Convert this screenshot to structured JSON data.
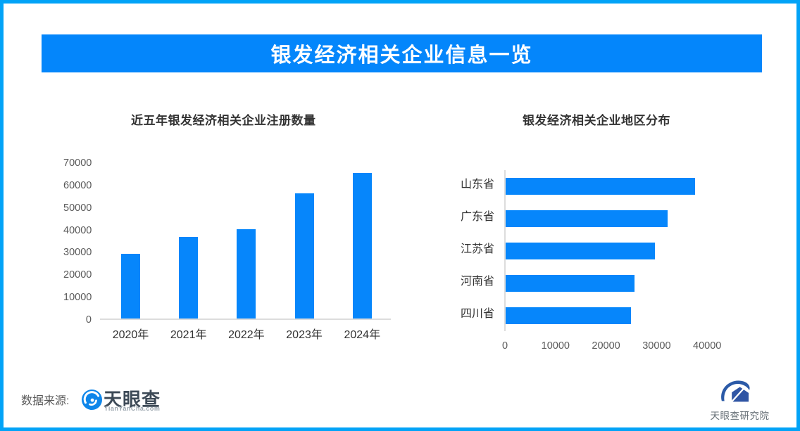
{
  "banner": {
    "title": "银发经济相关企业信息一览"
  },
  "footer": {
    "source_label": "数据来源:",
    "tianyancha": {
      "name": "天眼查",
      "domain": "TianYanCha.com"
    },
    "research_institute": "天眼查研究院"
  },
  "colors": {
    "banner_bg": "#0486FB",
    "page_border": "#02A3F7",
    "bar": "#0686FB",
    "axis_line": "#DCDCDC",
    "tick_text": "#595959",
    "label_text": "#333333",
    "banner_text": "#FFFFFF",
    "tyc_icon_blue": "#0E86EA",
    "tyc_name_text": "#3D4A57",
    "tyc_domain_text": "#9AA5AE",
    "institute_blue": "#2B5AA7",
    "institute_text": "#666F76"
  },
  "chart_data": [
    {
      "type": "bar",
      "orientation": "vertical",
      "title": "近五年银发经济相关企业注册数量",
      "categories": [
        "2020年",
        "2021年",
        "2022年",
        "2023年",
        "2024年"
      ],
      "values": [
        29000,
        36500,
        40000,
        56000,
        65000
      ],
      "xlabel": "",
      "ylabel": "",
      "ylim": [
        0,
        70000
      ],
      "yticks": [
        0,
        10000,
        20000,
        30000,
        40000,
        50000,
        60000,
        70000
      ],
      "grid": false,
      "legend": false
    },
    {
      "type": "bar",
      "orientation": "horizontal",
      "title": "银发经济相关企业地区分布",
      "categories": [
        "山东省",
        "广东省",
        "江苏省",
        "河南省",
        "四川省"
      ],
      "values": [
        37500,
        32000,
        29500,
        25500,
        24800
      ],
      "xlabel": "",
      "ylabel": "",
      "xlim": [
        0,
        42000
      ],
      "xticks": [
        0,
        10000,
        20000,
        30000,
        40000
      ],
      "grid": false,
      "legend": false
    }
  ]
}
